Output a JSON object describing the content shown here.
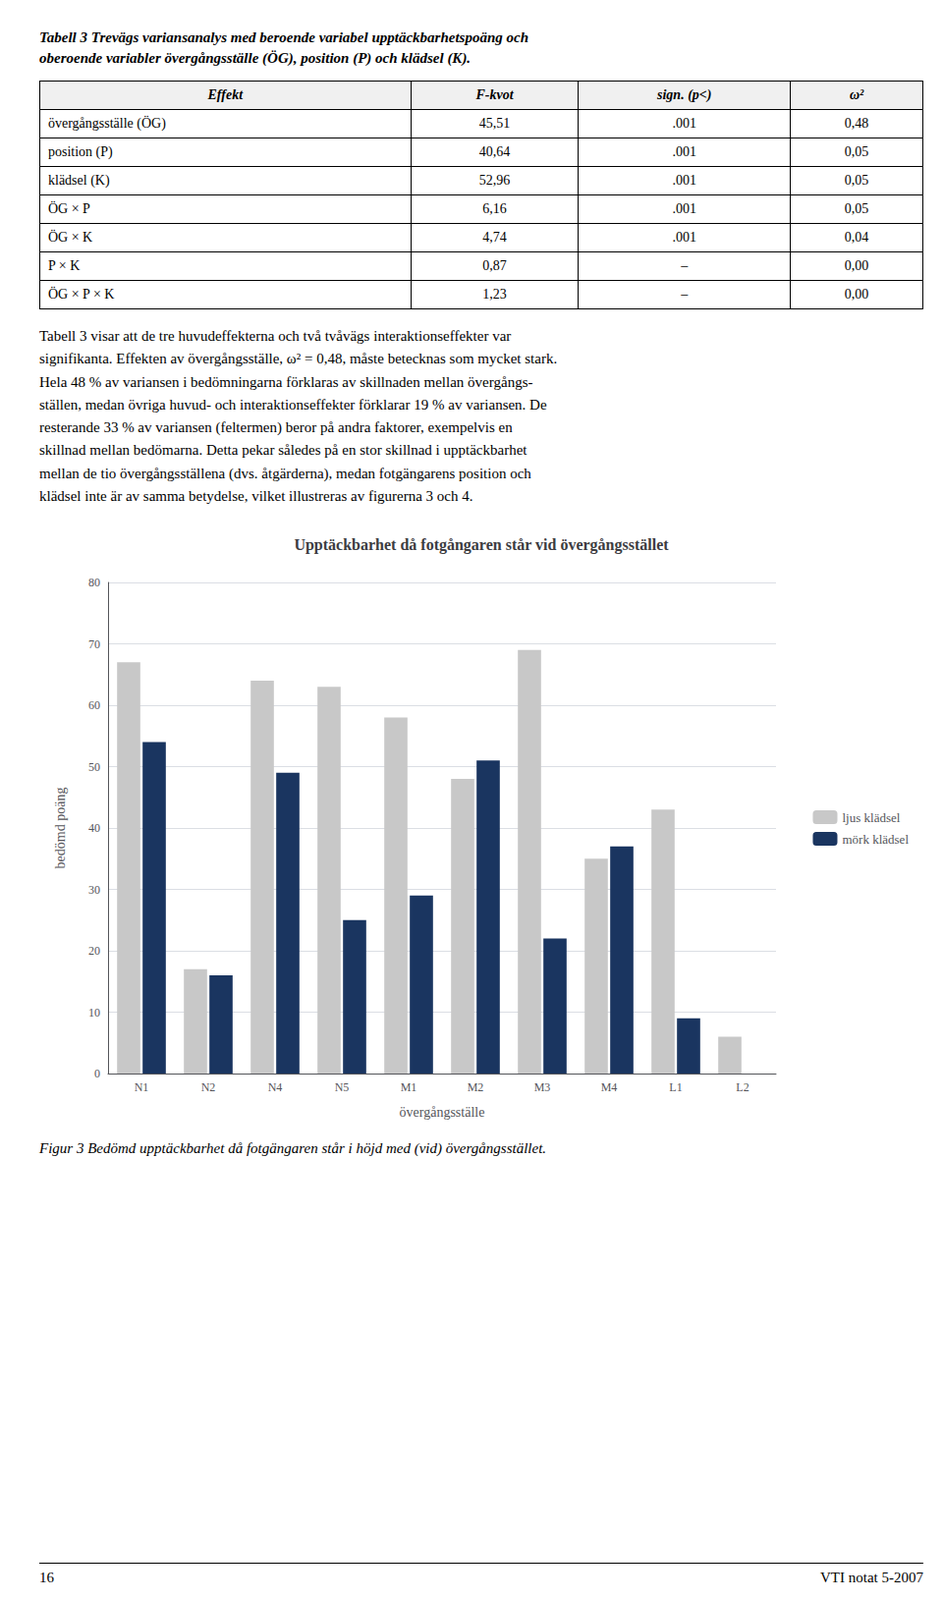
{
  "chart_data": {
    "type": "bar",
    "title": "Upptäckbarhet då fotgångaren står vid övergångsstället",
    "xlabel": "övergångsställe",
    "ylabel": "bedömd poäng",
    "categories": [
      "N1",
      "N2",
      "N4",
      "N5",
      "M1",
      "M2",
      "M3",
      "M4",
      "L1",
      "L2"
    ],
    "series": [
      {
        "name": "ljus klädsel",
        "color": "#c8c8c8",
        "values": [
          67,
          17,
          64,
          63,
          58,
          48,
          69,
          35,
          43,
          6
        ]
      },
      {
        "name": "mörk klädsel",
        "color": "#1a3560",
        "values": [
          54,
          16,
          49,
          25,
          29,
          51,
          22,
          37,
          9,
          0
        ]
      }
    ],
    "ylim": [
      0,
      80
    ],
    "yticks": [
      0,
      10,
      20,
      30,
      40,
      50,
      60,
      70,
      80
    ],
    "grid": true,
    "legend": "right"
  },
  "table": {
    "title": [
      "Tabell 3  Trevägs variansanalys med beroende variabel upptäckbarhetspoäng och",
      "oberoende variabler övergångsställe (ÖG), position (P) och klädsel (K)."
    ],
    "headers": [
      "Effekt",
      "F-kvot",
      "sign. (p<)",
      "ω²"
    ],
    "rows": [
      [
        "övergångsställe (ÖG)",
        "45,51",
        ".001",
        "0,48"
      ],
      [
        "position (P)",
        "40,64",
        ".001",
        "0,05"
      ],
      [
        "klädsel (K)",
        "52,96",
        ".001",
        "0,05"
      ],
      [
        "ÖG × P",
        "6,16",
        ".001",
        "0,05"
      ],
      [
        "ÖG × K",
        "4,74",
        ".001",
        "0,04"
      ],
      [
        "P × K",
        "0,87",
        "–",
        "0,00"
      ],
      [
        "ÖG × P × K",
        "1,23",
        "–",
        "0,00"
      ]
    ]
  },
  "body": [
    "Tabell 3 visar att de tre huvudeffekterna och två tvåvägs interaktionseffekter var",
    "signifikanta. Effekten av övergångsställe, ω² = 0,48, måste betecknas som mycket stark.",
    "Hela 48 % av variansen i bedömningarna förklaras av skillnaden mellan övergångs-",
    "ställen, medan övriga huvud- och interaktionseffekter förklarar 19 % av variansen. De",
    "resterande 33 % av variansen (feltermen) beror på andra faktorer, exempelvis en",
    "skillnad mellan bedömarna. Detta pekar således på en stor skillnad i upptäckbarhet",
    "mellan de tio övergångsställena (dvs. åtgärderna), medan fotgängarens position och",
    "klädsel inte är av samma betydelse, vilket illustreras av figurerna 3 och 4."
  ],
  "caption": "Figur 3  Bedömd upptäckbarhet då fotgängaren står i höjd med (vid) övergångsstället.",
  "footer": {
    "page_number": "16",
    "report_number": "VTI notat 5-2007"
  }
}
